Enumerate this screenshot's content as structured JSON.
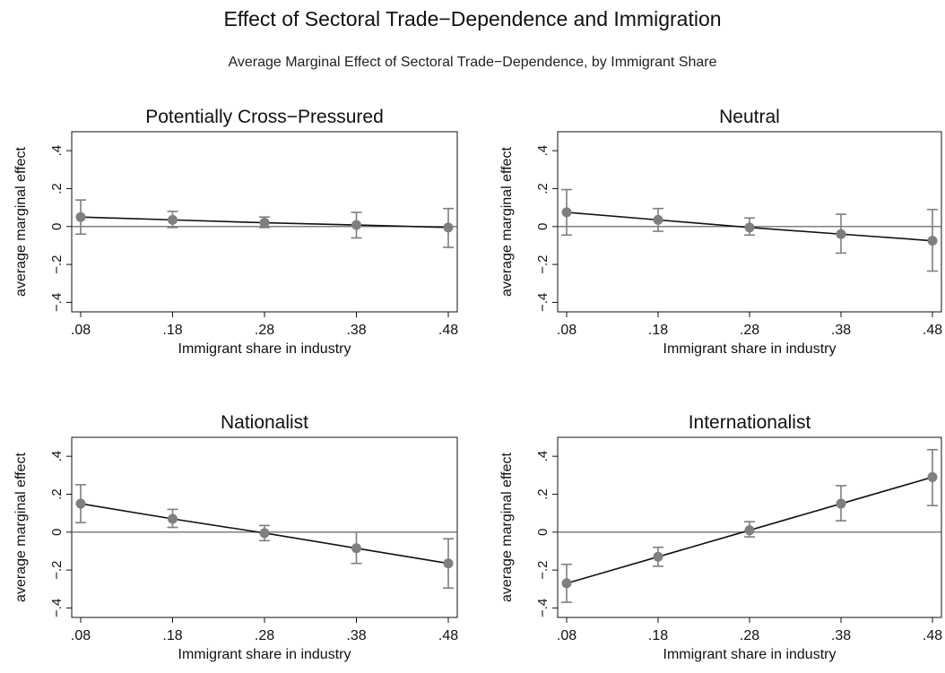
{
  "figure": {
    "title": "Effect of Sectoral Trade−Dependence and Immigration",
    "subtitle": "Average Marginal Effect of Sectoral Trade−Dependence, by Immigrant Share"
  },
  "colors": {
    "line": "#111111",
    "marker": "#7f7f7f",
    "ci": "#7f7f7f",
    "axis": "#111111",
    "zero_line": "#555555"
  },
  "chart_data": [
    {
      "type": "line",
      "title": "Potentially Cross−Pressured",
      "xlabel": "Immigrant share in industry",
      "ylabel": "average marginal effect",
      "x": [
        0.08,
        0.18,
        0.28,
        0.38,
        0.48
      ],
      "x_tick_labels": [
        ".08",
        ".18",
        ".28",
        ".38",
        ".48"
      ],
      "y_ticks": [
        -0.4,
        -0.2,
        0,
        0.2,
        0.4
      ],
      "y_tick_labels": [
        "−.4",
        "−.2",
        "0",
        ".2",
        ".4"
      ],
      "ylim": [
        -0.45,
        0.5
      ],
      "xlim": [
        0.08,
        0.48
      ],
      "reference_line": 0,
      "values": [
        0.05,
        0.035,
        0.02,
        0.008,
        -0.005
      ],
      "ci_low": [
        -0.04,
        -0.005,
        -0.005,
        -0.06,
        -0.11
      ],
      "ci_high": [
        0.14,
        0.08,
        0.05,
        0.075,
        0.095
      ]
    },
    {
      "type": "line",
      "title": "Neutral",
      "xlabel": "Immigrant share in industry",
      "ylabel": "average marginal effect",
      "x": [
        0.08,
        0.18,
        0.28,
        0.38,
        0.48
      ],
      "x_tick_labels": [
        ".08",
        ".18",
        ".28",
        ".38",
        ".48"
      ],
      "y_ticks": [
        -0.4,
        -0.2,
        0,
        0.2,
        0.4
      ],
      "y_tick_labels": [
        "−.4",
        "−.2",
        "0",
        ".2",
        ".4"
      ],
      "ylim": [
        -0.45,
        0.5
      ],
      "xlim": [
        0.08,
        0.48
      ],
      "reference_line": 0,
      "values": [
        0.075,
        0.035,
        -0.005,
        -0.04,
        -0.075
      ],
      "ci_low": [
        -0.045,
        -0.025,
        -0.045,
        -0.14,
        -0.235
      ],
      "ci_high": [
        0.195,
        0.095,
        0.045,
        0.065,
        0.09
      ]
    },
    {
      "type": "line",
      "title": "Nationalist",
      "xlabel": "Immigrant share in industry",
      "ylabel": "average marginal effect",
      "x": [
        0.08,
        0.18,
        0.28,
        0.38,
        0.48
      ],
      "x_tick_labels": [
        ".08",
        ".18",
        ".28",
        ".38",
        ".48"
      ],
      "y_ticks": [
        -0.4,
        -0.2,
        0,
        0.2,
        0.4
      ],
      "y_tick_labels": [
        "−.4",
        "−.2",
        "0",
        ".2",
        ".4"
      ],
      "ylim": [
        -0.45,
        0.5
      ],
      "xlim": [
        0.08,
        0.48
      ],
      "reference_line": 0,
      "values": [
        0.15,
        0.07,
        -0.005,
        -0.085,
        -0.165
      ],
      "ci_low": [
        0.05,
        0.025,
        -0.045,
        -0.165,
        -0.295
      ],
      "ci_high": [
        0.25,
        0.12,
        0.035,
        0.0,
        -0.035
      ]
    },
    {
      "type": "line",
      "title": "Internationalist",
      "xlabel": "Immigrant share in industry",
      "ylabel": "average marginal effect",
      "x": [
        0.08,
        0.18,
        0.28,
        0.38,
        0.48
      ],
      "x_tick_labels": [
        ".08",
        ".18",
        ".28",
        ".38",
        ".48"
      ],
      "y_ticks": [
        -0.4,
        -0.2,
        0,
        0.2,
        0.4
      ],
      "y_tick_labels": [
        "−.4",
        "−.2",
        "0",
        ".2",
        ".4"
      ],
      "ylim": [
        -0.45,
        0.5
      ],
      "xlim": [
        0.08,
        0.48
      ],
      "reference_line": 0,
      "values": [
        -0.27,
        -0.13,
        0.01,
        0.15,
        0.29
      ],
      "ci_low": [
        -0.37,
        -0.18,
        -0.025,
        0.06,
        0.14
      ],
      "ci_high": [
        -0.17,
        -0.08,
        0.055,
        0.245,
        0.435
      ]
    }
  ]
}
